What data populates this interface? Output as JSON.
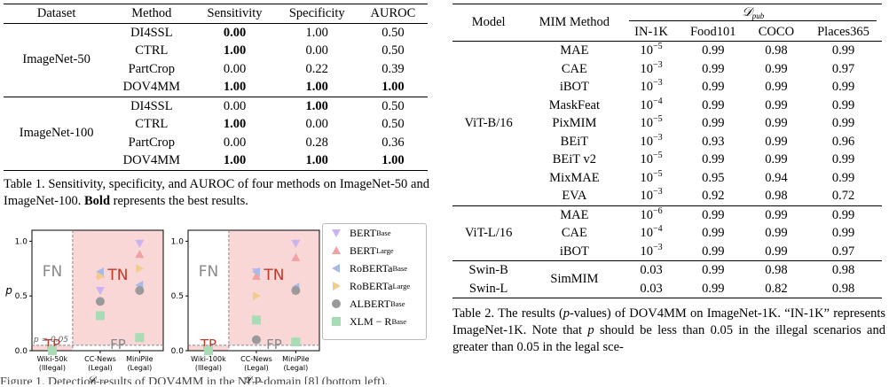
{
  "table1": {
    "headers": [
      "Dataset",
      "Method",
      "Sensitivity",
      "Specificity",
      "AUROC"
    ],
    "groups": [
      {
        "dataset": "ImageNet-50",
        "rows": [
          {
            "method": "DI4SSL",
            "sens": "0.00",
            "spec": "1.00",
            "auroc": "0.50",
            "bold": [
              false,
              true,
              false,
              false
            ]
          },
          {
            "method": "CTRL",
            "sens": "1.00",
            "spec": "0.00",
            "auroc": "0.50",
            "bold": [
              false,
              true,
              false,
              false
            ]
          },
          {
            "method": "PartCrop",
            "sens": "0.00",
            "spec": "0.22",
            "auroc": "0.39",
            "bold": [
              false,
              false,
              false,
              false
            ]
          },
          {
            "method": "DOV4MM",
            "sens": "1.00",
            "spec": "1.00",
            "auroc": "1.00",
            "bold": [
              false,
              true,
              true,
              true
            ]
          }
        ]
      },
      {
        "dataset": "ImageNet-100",
        "rows": [
          {
            "method": "DI4SSL",
            "sens": "0.00",
            "spec": "1.00",
            "auroc": "0.50",
            "bold": [
              false,
              false,
              true,
              false
            ]
          },
          {
            "method": "CTRL",
            "sens": "1.00",
            "spec": "0.00",
            "auroc": "0.50",
            "bold": [
              false,
              true,
              false,
              false
            ]
          },
          {
            "method": "PartCrop",
            "sens": "0.00",
            "spec": "0.28",
            "auroc": "0.36",
            "bold": [
              false,
              false,
              false,
              false
            ]
          },
          {
            "method": "DOV4MM",
            "sens": "1.00",
            "spec": "1.00",
            "auroc": "1.00",
            "bold": [
              false,
              true,
              true,
              true
            ]
          }
        ]
      }
    ],
    "caption_label": "Table 1.",
    "caption_text_a": " Sensitivity, specificity, and AUROC of four methods on ImageNet-50 and ImageNet-100. ",
    "caption_bold": "Bold",
    "caption_text_b": " represents the best results."
  },
  "table2": {
    "header_model": "Model",
    "header_method": "MIM Method",
    "header_dpub": "𝒟",
    "header_dpub_sub": "pub",
    "subheaders": [
      "IN-1K",
      "Food101",
      "COCO",
      "Places365"
    ],
    "groups": [
      {
        "model": [
          "ViT-B/16"
        ],
        "rows": [
          {
            "method": "MAE",
            "base": "10",
            "exp": "−5",
            "v": [
              "0.99",
              "0.98",
              "0.99"
            ]
          },
          {
            "method": "CAE",
            "base": "10",
            "exp": "−3",
            "v": [
              "0.99",
              "0.99",
              "0.97"
            ]
          },
          {
            "method": "iBOT",
            "base": "10",
            "exp": "−3",
            "v": [
              "0.99",
              "0.99",
              "0.99"
            ]
          },
          {
            "method": "MaskFeat",
            "base": "10",
            "exp": "−4",
            "v": [
              "0.99",
              "0.99",
              "0.99"
            ]
          },
          {
            "method": "PixMIM",
            "base": "10",
            "exp": "−5",
            "v": [
              "0.99",
              "0.99",
              "0.99"
            ]
          },
          {
            "method": "BEiT",
            "base": "10",
            "exp": "−3",
            "v": [
              "0.93",
              "0.99",
              "0.96"
            ]
          },
          {
            "method": "BEiT v2",
            "base": "10",
            "exp": "−5",
            "v": [
              "0.99",
              "0.99",
              "0.99"
            ]
          },
          {
            "method": "MixMAE",
            "base": "10",
            "exp": "−5",
            "v": [
              "0.95",
              "0.94",
              "0.99"
            ]
          },
          {
            "method": "EVA",
            "base": "10",
            "exp": "−3",
            "v": [
              "0.92",
              "0.98",
              "0.72"
            ]
          }
        ]
      },
      {
        "model": [
          "ViT-L/16"
        ],
        "rows": [
          {
            "method": "MAE",
            "base": "10",
            "exp": "−6",
            "v": [
              "0.99",
              "0.99",
              "0.99"
            ]
          },
          {
            "method": "CAE",
            "base": "10",
            "exp": "−4",
            "v": [
              "0.99",
              "0.99",
              "0.99"
            ]
          },
          {
            "method": "iBOT",
            "base": "10",
            "exp": "−3",
            "v": [
              "0.99",
              "0.99",
              "0.97"
            ]
          }
        ]
      }
    ],
    "swin": {
      "models": [
        "Swin-B",
        "Swin-L"
      ],
      "method": "SimMIM",
      "rows": [
        {
          "in1k": "0.03",
          "v": [
            "0.99",
            "0.98",
            "0.98"
          ]
        },
        {
          "in1k": "0.03",
          "v": [
            "0.99",
            "0.82",
            "0.98"
          ]
        }
      ]
    },
    "caption_label": "Table 2.",
    "caption_text_a": " The results (",
    "caption_p1": "p",
    "caption_text_b": "-values) of DOV4MM on ImageNet-1K. “IN-1K” represents ImageNet-1K. Note that ",
    "caption_p2": "p",
    "caption_text_c": " should be less than 0.05 in the illegal scenarios and greater than 0.05 in the legal sce-"
  },
  "figure": {
    "region_labels": {
      "fn": "FN",
      "tn": "TN",
      "tp": "TP",
      "fp": "FP"
    },
    "threshold_label": "p = 0.05",
    "ylabel": "p",
    "xlabel": "𝒟",
    "xlabel_sub": "pub",
    "yticks": [
      "0.0",
      "0.5",
      "1.0"
    ],
    "legend": [
      {
        "name": "BERT",
        "sub": "Base",
        "marker": "tri-down",
        "color": "#c9b3f0"
      },
      {
        "name": "BERT",
        "sub": "Large",
        "marker": "tri-up",
        "color": "#f2a0a0"
      },
      {
        "name": "RoBERTa",
        "sub": "Base",
        "marker": "tri-left",
        "color": "#a9b9e8"
      },
      {
        "name": "RoBERTa",
        "sub": "Large",
        "marker": "tri-right",
        "color": "#f2cc8a"
      },
      {
        "name": "ALBERT",
        "sub": "Base",
        "marker": "circle",
        "color": "#9a9a9a"
      },
      {
        "name": "XLM − R",
        "sub": "Base",
        "marker": "square",
        "color": "#a8dcb4"
      }
    ],
    "chart_data": [
      {
        "type": "scatter",
        "categories": [
          "Wiki-50k (Illegal)",
          "CC-News (Legal)",
          "MiniPile (Legal)"
        ],
        "cat_lines": [
          [
            "Wiki-50k",
            "(Illegal)"
          ],
          [
            "CC-News",
            "(Legal)"
          ],
          [
            "MiniPile",
            "(Legal)"
          ]
        ],
        "ylim": [
          0,
          1.1
        ],
        "series": [
          {
            "name": "BERT Base",
            "values": [
              0.0,
              0.55,
              0.98
            ]
          },
          {
            "name": "BERT Large",
            "values": [
              0.0,
              0.7,
              0.88
            ]
          },
          {
            "name": "RoBERTa Base",
            "values": [
              0.0,
              0.72,
              0.6
            ]
          },
          {
            "name": "RoBERTa Large",
            "values": [
              0.0,
              0.68,
              0.75
            ]
          },
          {
            "name": "ALBERT Base",
            "values": [
              0.0,
              0.45,
              0.55
            ]
          },
          {
            "name": "XLM − R Base",
            "values": [
              0.0,
              0.32,
              0.12
            ]
          }
        ]
      },
      {
        "type": "scatter",
        "categories": [
          "Wiki-100k (Illegal)",
          "CC-News (Legal)",
          "MiniPile (Legal)"
        ],
        "cat_lines": [
          [
            "Wiki-100k",
            "(Illegal)"
          ],
          [
            "CC-News",
            "(Legal)"
          ],
          [
            "MiniPile",
            "(Legal)"
          ]
        ],
        "ylim": [
          0,
          1.1
        ],
        "series": [
          {
            "name": "BERT Base",
            "values": [
              0.0,
              0.72,
              0.98
            ]
          },
          {
            "name": "BERT Large",
            "values": [
              0.0,
              0.68,
              0.85
            ]
          },
          {
            "name": "RoBERTa Base",
            "values": [
              0.0,
              0.72,
              0.58
            ]
          },
          {
            "name": "RoBERTa Large",
            "values": [
              0.0,
              0.5,
              0.55
            ]
          },
          {
            "name": "ALBERT Base",
            "values": [
              0.0,
              0.1,
              0.55
            ]
          },
          {
            "name": "XLM − R Base",
            "values": [
              0.0,
              0.28,
              0.08
            ]
          }
        ]
      }
    ]
  },
  "cut_text": "Figure 1. Detection results of DOV4MM in the NLP domain [8] (bottom left)."
}
